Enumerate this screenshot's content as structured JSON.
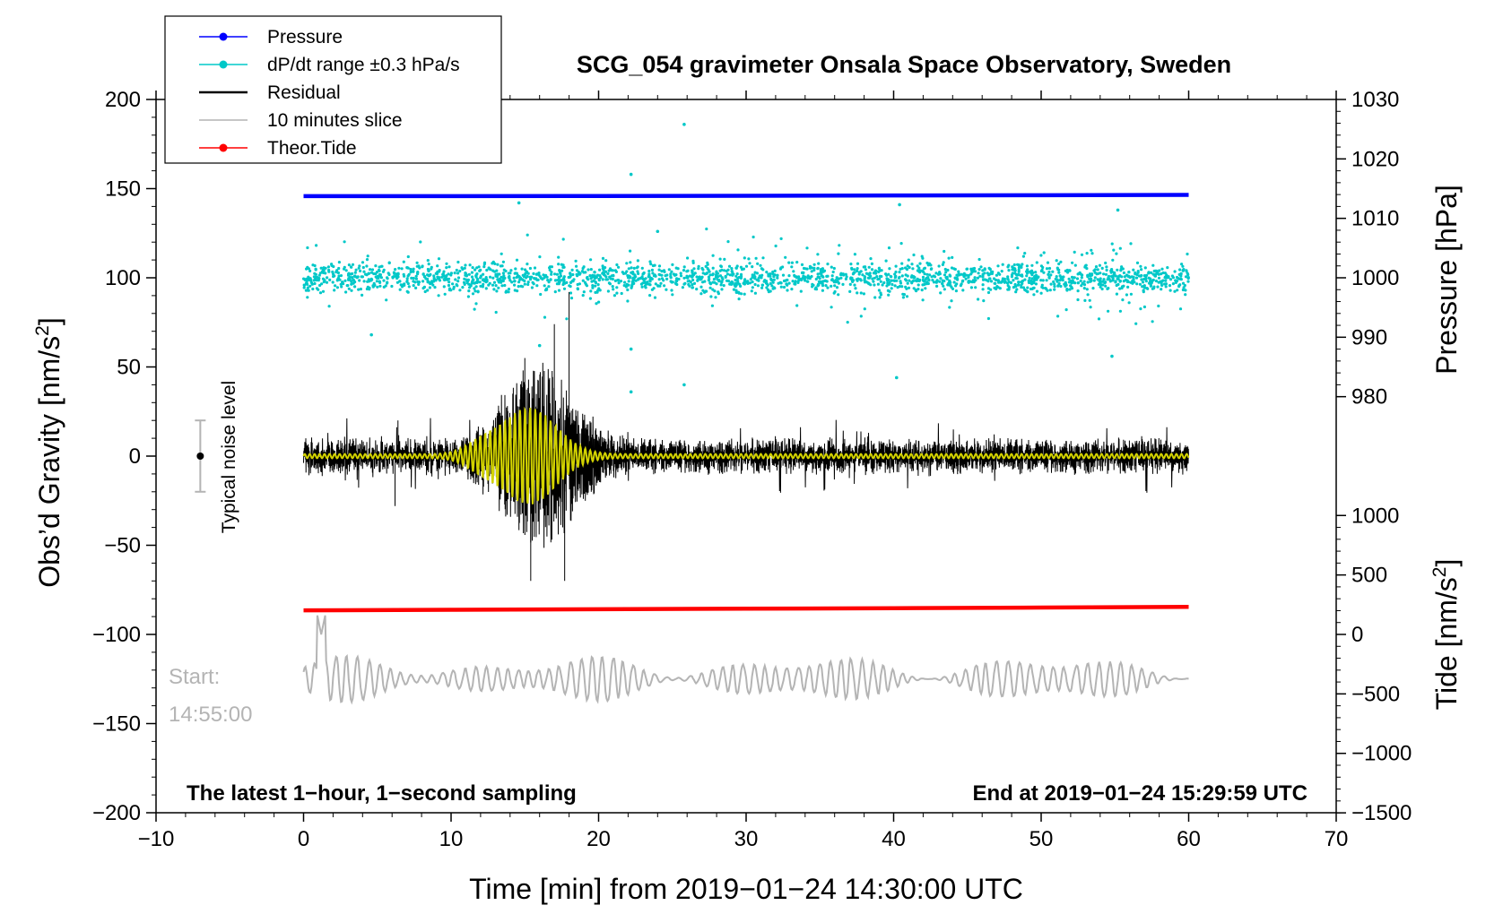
{
  "chart_data": {
    "type": "line",
    "title": "SCG_054 gravimeter Onsala Space Observatory, Sweden",
    "xlabel": "Time [min] from 2019−01−24 14:30:00 UTC",
    "ylabel_left": "Obs’d Gravity [nm/s²]",
    "ylabel_left_main": "Obs’d Gravity [nm/s",
    "ylabel_left_sup": "2",
    "ylabel_left_end": "]",
    "ylabel_pressure": "Pressure [hPa]",
    "ylabel_tide": "Tide [nm/s²]",
    "ylabel_tide_main": "Tide [nm/s",
    "ylabel_tide_sup": "2",
    "ylabel_tide_end": "]",
    "xlim": [
      -10,
      70
    ],
    "ylim": [
      -200,
      200
    ],
    "x_ticks": [
      {
        "value": -10,
        "label": "−10"
      },
      {
        "value": 0,
        "label": "0"
      },
      {
        "value": 10,
        "label": "10"
      },
      {
        "value": 20,
        "label": "20"
      },
      {
        "value": 30,
        "label": "30"
      },
      {
        "value": 40,
        "label": "40"
      },
      {
        "value": 50,
        "label": "50"
      },
      {
        "value": 60,
        "label": "60"
      },
      {
        "value": 70,
        "label": "70"
      }
    ],
    "y_left_ticks": [
      {
        "value": 200,
        "label": "200"
      },
      {
        "value": 150,
        "label": "150"
      },
      {
        "value": 100,
        "label": "100"
      },
      {
        "value": 50,
        "label": "50"
      },
      {
        "value": 0,
        "label": "0"
      },
      {
        "value": -50,
        "label": "−50"
      },
      {
        "value": -100,
        "label": "−100"
      },
      {
        "value": -150,
        "label": "−150"
      },
      {
        "value": -200,
        "label": "−200"
      }
    ],
    "pressure_axis": {
      "map": {
        "hpa_a": 1000,
        "grav_a": 100,
        "hpa_b": 1030,
        "grav_b": 200
      },
      "ticks": [
        {
          "value": 1030,
          "label": "1030"
        },
        {
          "value": 1020,
          "label": "1020"
        },
        {
          "value": 1010,
          "label": "1010"
        },
        {
          "value": 1000,
          "label": "1000"
        },
        {
          "value": 990,
          "label": "990"
        },
        {
          "value": 980,
          "label": "980"
        }
      ]
    },
    "tide_axis": {
      "map": {
        "tide_a": 0,
        "grav_a": -100,
        "tide_b": 1000,
        "grav_b": -33.3
      },
      "ticks": [
        {
          "value": 1000,
          "label": "1000"
        },
        {
          "value": 500,
          "label": "500"
        },
        {
          "value": 0,
          "label": "0"
        },
        {
          "value": -500,
          "label": "−500"
        },
        {
          "value": -1000,
          "label": "−1000"
        },
        {
          "value": -1500,
          "label": "−1500"
        }
      ]
    },
    "series": [
      {
        "name": "Pressure",
        "color": "#0000ff",
        "x": [
          0,
          10,
          20,
          30,
          40,
          50,
          60
        ],
        "values": [
          145.8,
          145.8,
          145.9,
          146.0,
          146.2,
          146.3,
          146.5
        ]
      },
      {
        "name": "dP/dt range ±0.3 hPa/s",
        "color": "#00c8c8",
        "x_range": [
          0,
          60
        ],
        "center": 100,
        "spread": 4,
        "outliers": [
          [
            25.8,
            186
          ],
          [
            22.2,
            158
          ],
          [
            40.4,
            141
          ],
          [
            55.2,
            138
          ],
          [
            14.6,
            142
          ],
          [
            24.0,
            126
          ],
          [
            22.2,
            60
          ],
          [
            22.2,
            36
          ],
          [
            25.8,
            40
          ],
          [
            40.2,
            44
          ],
          [
            54.8,
            56
          ],
          [
            4.6,
            68
          ],
          [
            16.0,
            62
          ]
        ]
      },
      {
        "name": "Residual",
        "color": "#000000",
        "x_range": [
          0,
          60
        ],
        "noise_amplitude": 8,
        "quake_window": [
          11,
          22
        ],
        "quake_peak_minute": 17.5,
        "quake_peak_value": 93,
        "quake_min_value": -70,
        "spikes": [
          [
            6.2,
            -28
          ],
          [
            18.0,
            92
          ],
          [
            15.4,
            -70
          ],
          [
            17.7,
            -70
          ],
          [
            6.4,
            20
          ],
          [
            15.0,
            55
          ],
          [
            17.0,
            74
          ]
        ]
      },
      {
        "name": "10 minutes slice",
        "color": "#b4b4b4",
        "x_range": [
          0,
          60
        ],
        "center": -125,
        "amplitude": 12,
        "peak": [
          1.2,
          -100
        ]
      },
      {
        "name": "Theor.Tide",
        "color": "#ff0000",
        "x": [
          0,
          10,
          20,
          30,
          40,
          50,
          60
        ],
        "values": [
          -86.5,
          -86.2,
          -85.9,
          -85.6,
          -85.3,
          -84.9,
          -84.5
        ]
      },
      {
        "name": "low-pass",
        "color": "#d2d200",
        "x_range": [
          0,
          60
        ],
        "quake_amplitude": 26
      }
    ],
    "legend": {
      "position": "top-left",
      "entries": [
        {
          "label": "Pressure",
          "color": "#0000ff",
          "marker": true
        },
        {
          "label": "dP/dt range ±0.3 hPa/s",
          "color": "#00c8c8",
          "marker": true
        },
        {
          "label": "Residual",
          "color": "#000000",
          "marker": false
        },
        {
          "label": "10 minutes slice",
          "color": "#b4b4b4",
          "marker": false
        },
        {
          "label": "Theor.Tide",
          "color": "#ff0000",
          "marker": true
        }
      ]
    },
    "noise_bar": {
      "x": -7,
      "center": 0,
      "half_range": 20,
      "label": "Typical noise level"
    },
    "annotations": {
      "start_label": "Start:",
      "start_time": "14:55:00",
      "bottom_left": "The latest 1−hour, 1−second sampling",
      "bottom_right": "End at 2019−01−24 15:29:59 UTC"
    }
  }
}
